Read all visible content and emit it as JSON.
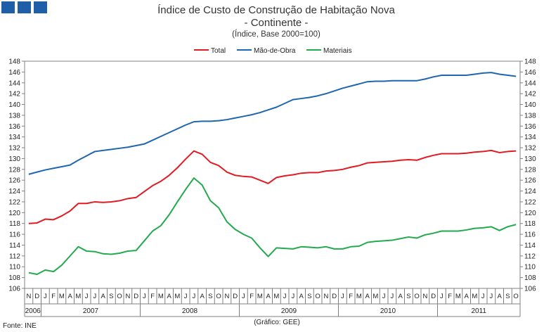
{
  "chart_data": {
    "type": "line",
    "title": "Índice de Custo de Construção de Habitação Nova",
    "subtitle": "- Continente -",
    "unit_label": "(Índice, Base 2000=100)",
    "ylim": [
      106,
      148
    ],
    "y_ticks": [
      106,
      108,
      110,
      112,
      114,
      116,
      118,
      120,
      122,
      124,
      126,
      128,
      130,
      132,
      134,
      136,
      138,
      140,
      142,
      144,
      146,
      148
    ],
    "month_labels": [
      "N",
      "D",
      "J",
      "F",
      "M",
      "A",
      "M",
      "J",
      "J",
      "A",
      "S",
      "O",
      "N",
      "D",
      "J",
      "F",
      "M",
      "A",
      "M",
      "J",
      "J",
      "A",
      "S",
      "O",
      "N",
      "D",
      "J",
      "F",
      "M",
      "A",
      "M",
      "J",
      "J",
      "A",
      "S",
      "O",
      "N",
      "D",
      "J",
      "F",
      "M",
      "A",
      "M",
      "J",
      "J",
      "A",
      "S",
      "O",
      "N",
      "D",
      "J",
      "F",
      "M",
      "A",
      "M",
      "J",
      "J",
      "A",
      "S",
      "O"
    ],
    "years": [
      {
        "label": "2006",
        "start": 0,
        "end": 2
      },
      {
        "label": "2007",
        "start": 2,
        "end": 14
      },
      {
        "label": "2008",
        "start": 14,
        "end": 26
      },
      {
        "label": "2009",
        "start": 26,
        "end": 38
      },
      {
        "label": "2010",
        "start": 38,
        "end": 50
      },
      {
        "label": "2011",
        "start": 50,
        "end": 60
      }
    ],
    "series": [
      {
        "name": "Total",
        "color": "#e01b22",
        "values": [
          118.0,
          118.1,
          118.8,
          118.7,
          119.4,
          120.3,
          121.7,
          121.7,
          122.0,
          121.9,
          122.0,
          122.2,
          122.6,
          122.8,
          123.9,
          125.0,
          125.8,
          126.9,
          128.3,
          129.9,
          131.4,
          130.8,
          129.3,
          128.7,
          127.5,
          126.9,
          126.7,
          126.6,
          126.0,
          125.4,
          126.5,
          126.8,
          127.0,
          127.3,
          127.4,
          127.4,
          127.7,
          127.8,
          128.0,
          128.4,
          128.7,
          129.2,
          129.3,
          129.4,
          129.5,
          129.7,
          129.8,
          129.7,
          130.2,
          130.6,
          130.9,
          130.9,
          130.9,
          131.0,
          131.2,
          131.3,
          131.5,
          131.1,
          131.3,
          131.4
        ]
      },
      {
        "name": "Mão-de-Obra",
        "color": "#1f66b0",
        "values": [
          127.1,
          127.5,
          127.9,
          128.2,
          128.5,
          128.8,
          129.7,
          130.5,
          131.3,
          131.5,
          131.7,
          131.9,
          132.1,
          132.4,
          132.7,
          133.4,
          134.1,
          134.8,
          135.5,
          136.2,
          136.8,
          136.9,
          136.9,
          137.0,
          137.2,
          137.5,
          137.8,
          138.1,
          138.5,
          139.0,
          139.5,
          140.2,
          140.9,
          141.1,
          141.3,
          141.6,
          142.0,
          142.5,
          143.0,
          143.4,
          143.8,
          144.2,
          144.3,
          144.3,
          144.4,
          144.4,
          144.4,
          144.4,
          144.7,
          145.1,
          145.4,
          145.4,
          145.4,
          145.4,
          145.6,
          145.8,
          145.9,
          145.6,
          145.4,
          145.2
        ]
      },
      {
        "name": "Materiais",
        "color": "#22aa4e",
        "values": [
          108.9,
          108.6,
          109.4,
          109.1,
          110.3,
          112.0,
          113.7,
          112.9,
          112.8,
          112.4,
          112.3,
          112.5,
          112.9,
          113.0,
          114.8,
          116.6,
          117.6,
          119.6,
          122.0,
          124.3,
          126.4,
          125.1,
          122.2,
          120.9,
          118.3,
          116.9,
          116.0,
          115.3,
          113.5,
          111.9,
          113.5,
          113.4,
          113.3,
          113.7,
          113.6,
          113.5,
          113.7,
          113.3,
          113.3,
          113.7,
          113.8,
          114.5,
          114.7,
          114.8,
          114.9,
          115.2,
          115.5,
          115.3,
          115.9,
          116.2,
          116.6,
          116.6,
          116.6,
          116.8,
          117.1,
          117.2,
          117.4,
          116.7,
          117.4,
          117.8
        ]
      }
    ],
    "source": "Fonte: INE",
    "credit": "(Gráfico: GEE)"
  }
}
